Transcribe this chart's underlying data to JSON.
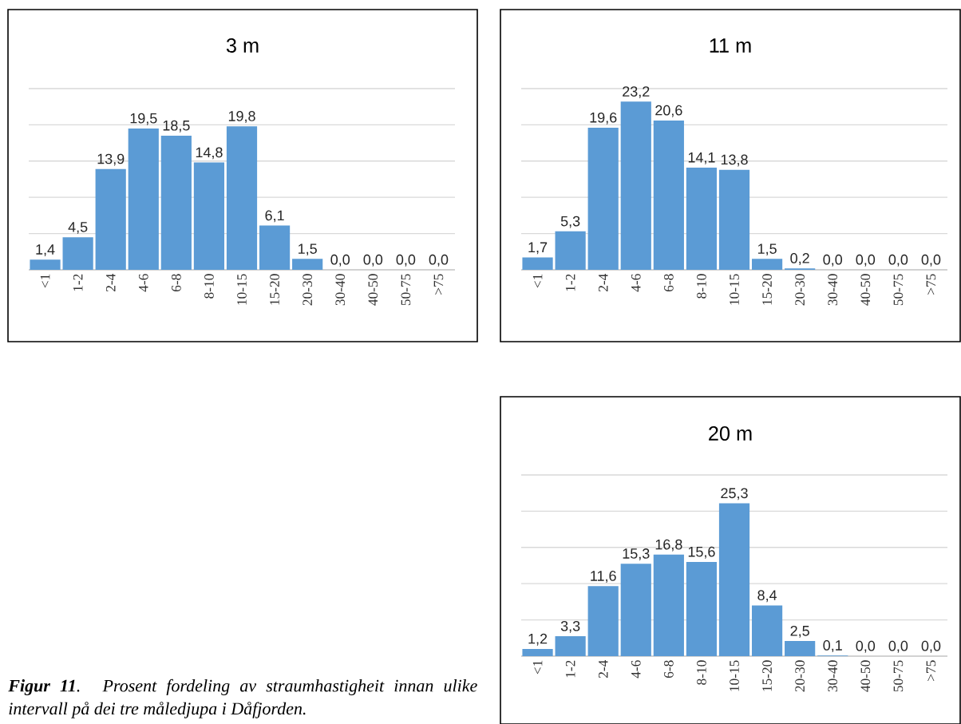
{
  "chart_data": [
    {
      "type": "bar",
      "title": "3 m",
      "categories": [
        "<1",
        "1-2",
        "2-4",
        "4-6",
        "6-8",
        "8-10",
        "10-15",
        "15-20",
        "20-30",
        "30-40",
        "40-50",
        "50-75",
        ">75"
      ],
      "values": [
        1.4,
        4.5,
        13.9,
        19.5,
        18.5,
        14.8,
        19.8,
        6.1,
        1.5,
        0.0,
        0.0,
        0.0,
        0.0
      ],
      "value_labels": [
        "1,4",
        "4,5",
        "13,9",
        "19,5",
        "18,5",
        "14,8",
        "19,8",
        "6,1",
        "1,5",
        "0,0",
        "0,0",
        "0,0",
        "0,0"
      ],
      "color": "#5b9bd5",
      "ylim": [
        0,
        25
      ],
      "yticks": [
        {
          "value": 0,
          "label": null
        },
        {
          "value": 5,
          "label": null
        },
        {
          "value": 10,
          "label": null
        },
        {
          "value": 15,
          "label": null
        },
        {
          "value": 20,
          "label": null
        },
        {
          "value": 25,
          "label": null
        }
      ],
      "grid": "y",
      "tick_labels": "x"
    },
    {
      "type": "bar",
      "title": "11 m",
      "categories": [
        "<1",
        "1-2",
        "2-4",
        "4-6",
        "6-8",
        "8-10",
        "10-15",
        "15-20",
        "20-30",
        "30-40",
        "40-50",
        "50-75",
        ">75"
      ],
      "values": [
        1.7,
        5.3,
        19.6,
        23.2,
        20.6,
        14.1,
        13.8,
        1.5,
        0.2,
        0.0,
        0.0,
        0.0,
        0.0
      ],
      "value_labels": [
        "1,7",
        "5,3",
        "19,6",
        "23,2",
        "20,6",
        "14,1",
        "13,8",
        "1,5",
        "0,2",
        "0,0",
        "0,0",
        "0,0",
        "0,0"
      ],
      "color": "#5b9bd5",
      "ylim": [
        0,
        25
      ],
      "yticks": [
        {
          "value": 0,
          "label": null
        },
        {
          "value": 5,
          "label": null
        },
        {
          "value": 10,
          "label": null
        },
        {
          "value": 15,
          "label": null
        },
        {
          "value": 20,
          "label": null
        },
        {
          "value": 25,
          "label": null
        }
      ],
      "grid": "y",
      "tick_labels": "x"
    },
    {
      "type": "bar",
      "title": "20 m",
      "categories": [
        "<1",
        "1-2",
        "2-4",
        "4-6",
        "6-8",
        "8-10",
        "10-15",
        "15-20",
        "20-30",
        "30-40",
        "40-50",
        "50-75",
        ">75"
      ],
      "values": [
        1.2,
        3.3,
        11.6,
        15.3,
        16.8,
        15.6,
        25.3,
        8.4,
        2.5,
        0.1,
        0.0,
        0.0,
        0.0
      ],
      "value_labels": [
        "1,2",
        "3,3",
        "11,6",
        "15,3",
        "16,8",
        "15,6",
        "25,3",
        "8,4",
        "2,5",
        "0,1",
        "0,0",
        "0,0",
        "0,0"
      ],
      "color": "#5b9bd5",
      "ylim": [
        0,
        30
      ],
      "yticks": [
        {
          "value": 0,
          "label": null
        },
        {
          "value": 6,
          "label": null
        },
        {
          "value": 12,
          "label": null
        },
        {
          "value": 18,
          "label": null
        },
        {
          "value": 24,
          "label": null
        },
        {
          "value": 30,
          "label": null
        }
      ],
      "grid": "y",
      "tick_labels": "x"
    },
    {
      "type": "other",
      "annotations": [
        "**Figur 11**. Prosent fordeling av straumhastigheit innan ulike intervall på dei tre måledjupa i Dåfjorden."
      ]
    }
  ]
}
